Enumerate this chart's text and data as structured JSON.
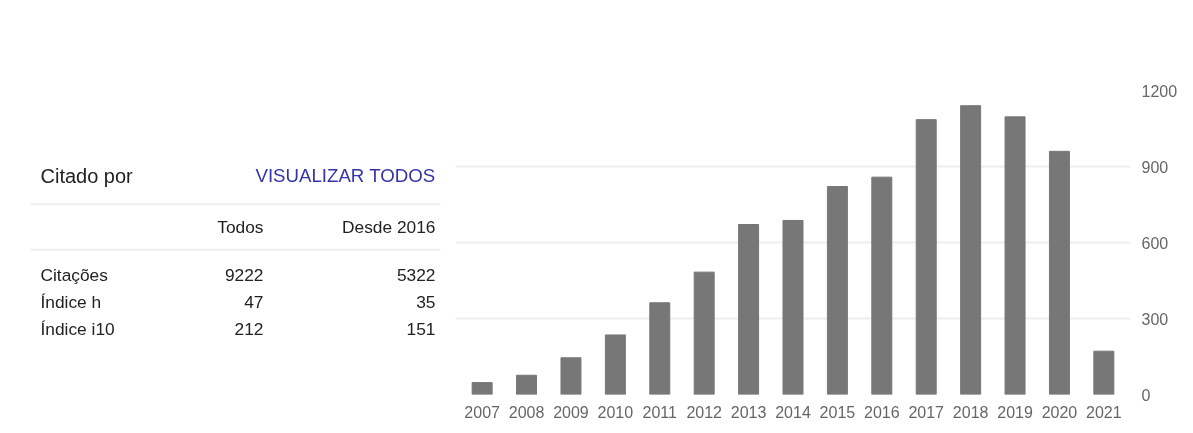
{
  "chart_data": [
    {
      "type": "other",
      "title": "Citado por",
      "annotations": [
        "VISUALIZAR TODOS",
        "Todos",
        "Desde 2016",
        "Citações",
        "9222",
        "5322",
        "Índice h",
        "47",
        "35",
        "Índice i10",
        "212",
        "151"
      ]
    },
    {
      "type": "bar",
      "categories": [
        "2007",
        "2008",
        "2009",
        "2010",
        "2011",
        "2012",
        "2013",
        "2014",
        "2015",
        "2016",
        "2017",
        "2018",
        "2019",
        "2020",
        "2021"
      ],
      "values": [
        47,
        76,
        145,
        235,
        362,
        483,
        671,
        687,
        821,
        858,
        1085,
        1140,
        1096,
        960,
        171
      ],
      "color": "#777777",
      "ylim": [
        0,
        1200
      ],
      "yticks": [
        0,
        300,
        600,
        900,
        1200
      ],
      "grid": "y"
    }
  ]
}
